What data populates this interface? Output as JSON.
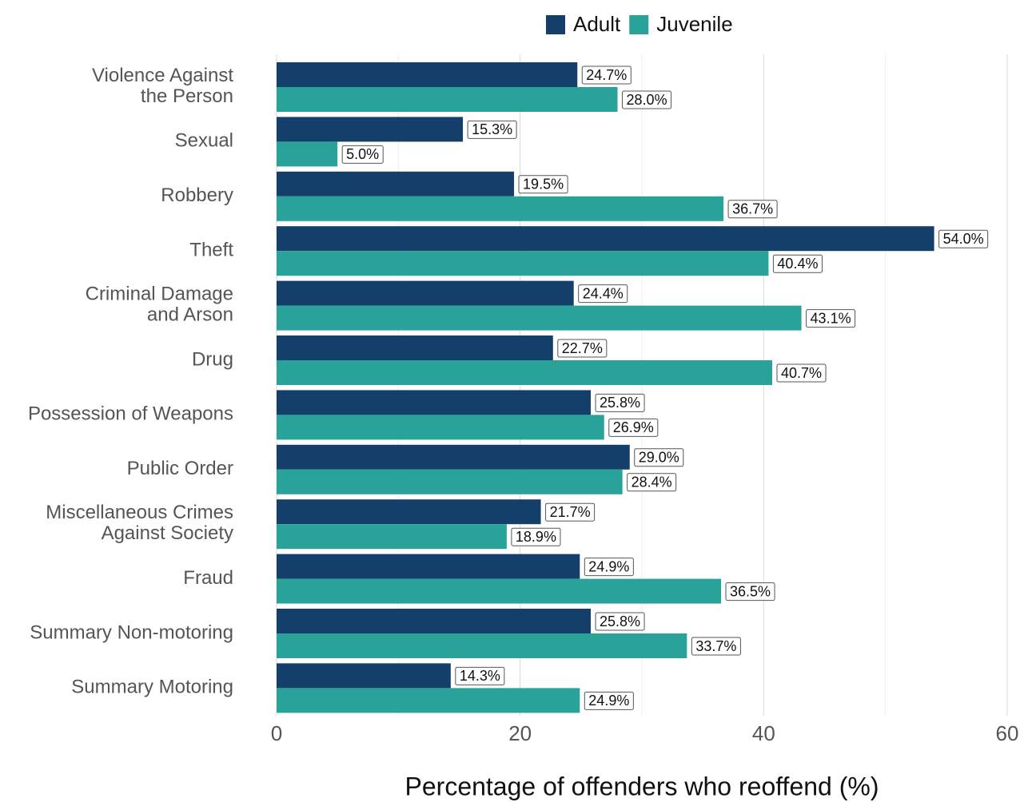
{
  "chart_data": {
    "type": "hbar",
    "xlabel": "Percentage of offenders who reoffend (%)",
    "categories": [
      "Violence Against\nthe Person",
      "Sexual",
      "Robbery",
      "Theft",
      "Criminal Damage\nand Arson",
      "Drug",
      "Possession of Weapons",
      "Public Order",
      "Miscellaneous Crimes\nAgainst Society",
      "Fraud",
      "Summary Non-motoring",
      "Summary Motoring"
    ],
    "series": [
      {
        "name": "Adult",
        "color": "#143f6b",
        "values": [
          24.7,
          15.3,
          19.5,
          54.0,
          24.4,
          22.7,
          25.8,
          29.0,
          21.7,
          24.9,
          25.8,
          14.3
        ],
        "value_labels": [
          "24.7%",
          "15.3%",
          "19.5%",
          "54.0%",
          "24.4%",
          "22.7%",
          "25.8%",
          "29.0%",
          "21.7%",
          "24.9%",
          "25.8%",
          "14.3%"
        ]
      },
      {
        "name": "Juvenile",
        "color": "#29a39a",
        "values": [
          28.0,
          5.0,
          36.7,
          40.4,
          43.1,
          40.7,
          26.9,
          28.4,
          18.9,
          36.5,
          33.7,
          24.9
        ],
        "value_labels": [
          "28.0%",
          "5.0%",
          "36.7%",
          "40.4%",
          "43.1%",
          "40.7%",
          "26.9%",
          "28.4%",
          "18.9%",
          "36.5%",
          "33.7%",
          "24.9%"
        ]
      }
    ],
    "xlim": [
      0,
      60
    ],
    "xticks": [
      0,
      20,
      40,
      60
    ],
    "minor_xticks": [
      10,
      30,
      50
    ],
    "grid": true,
    "legend": "top"
  }
}
